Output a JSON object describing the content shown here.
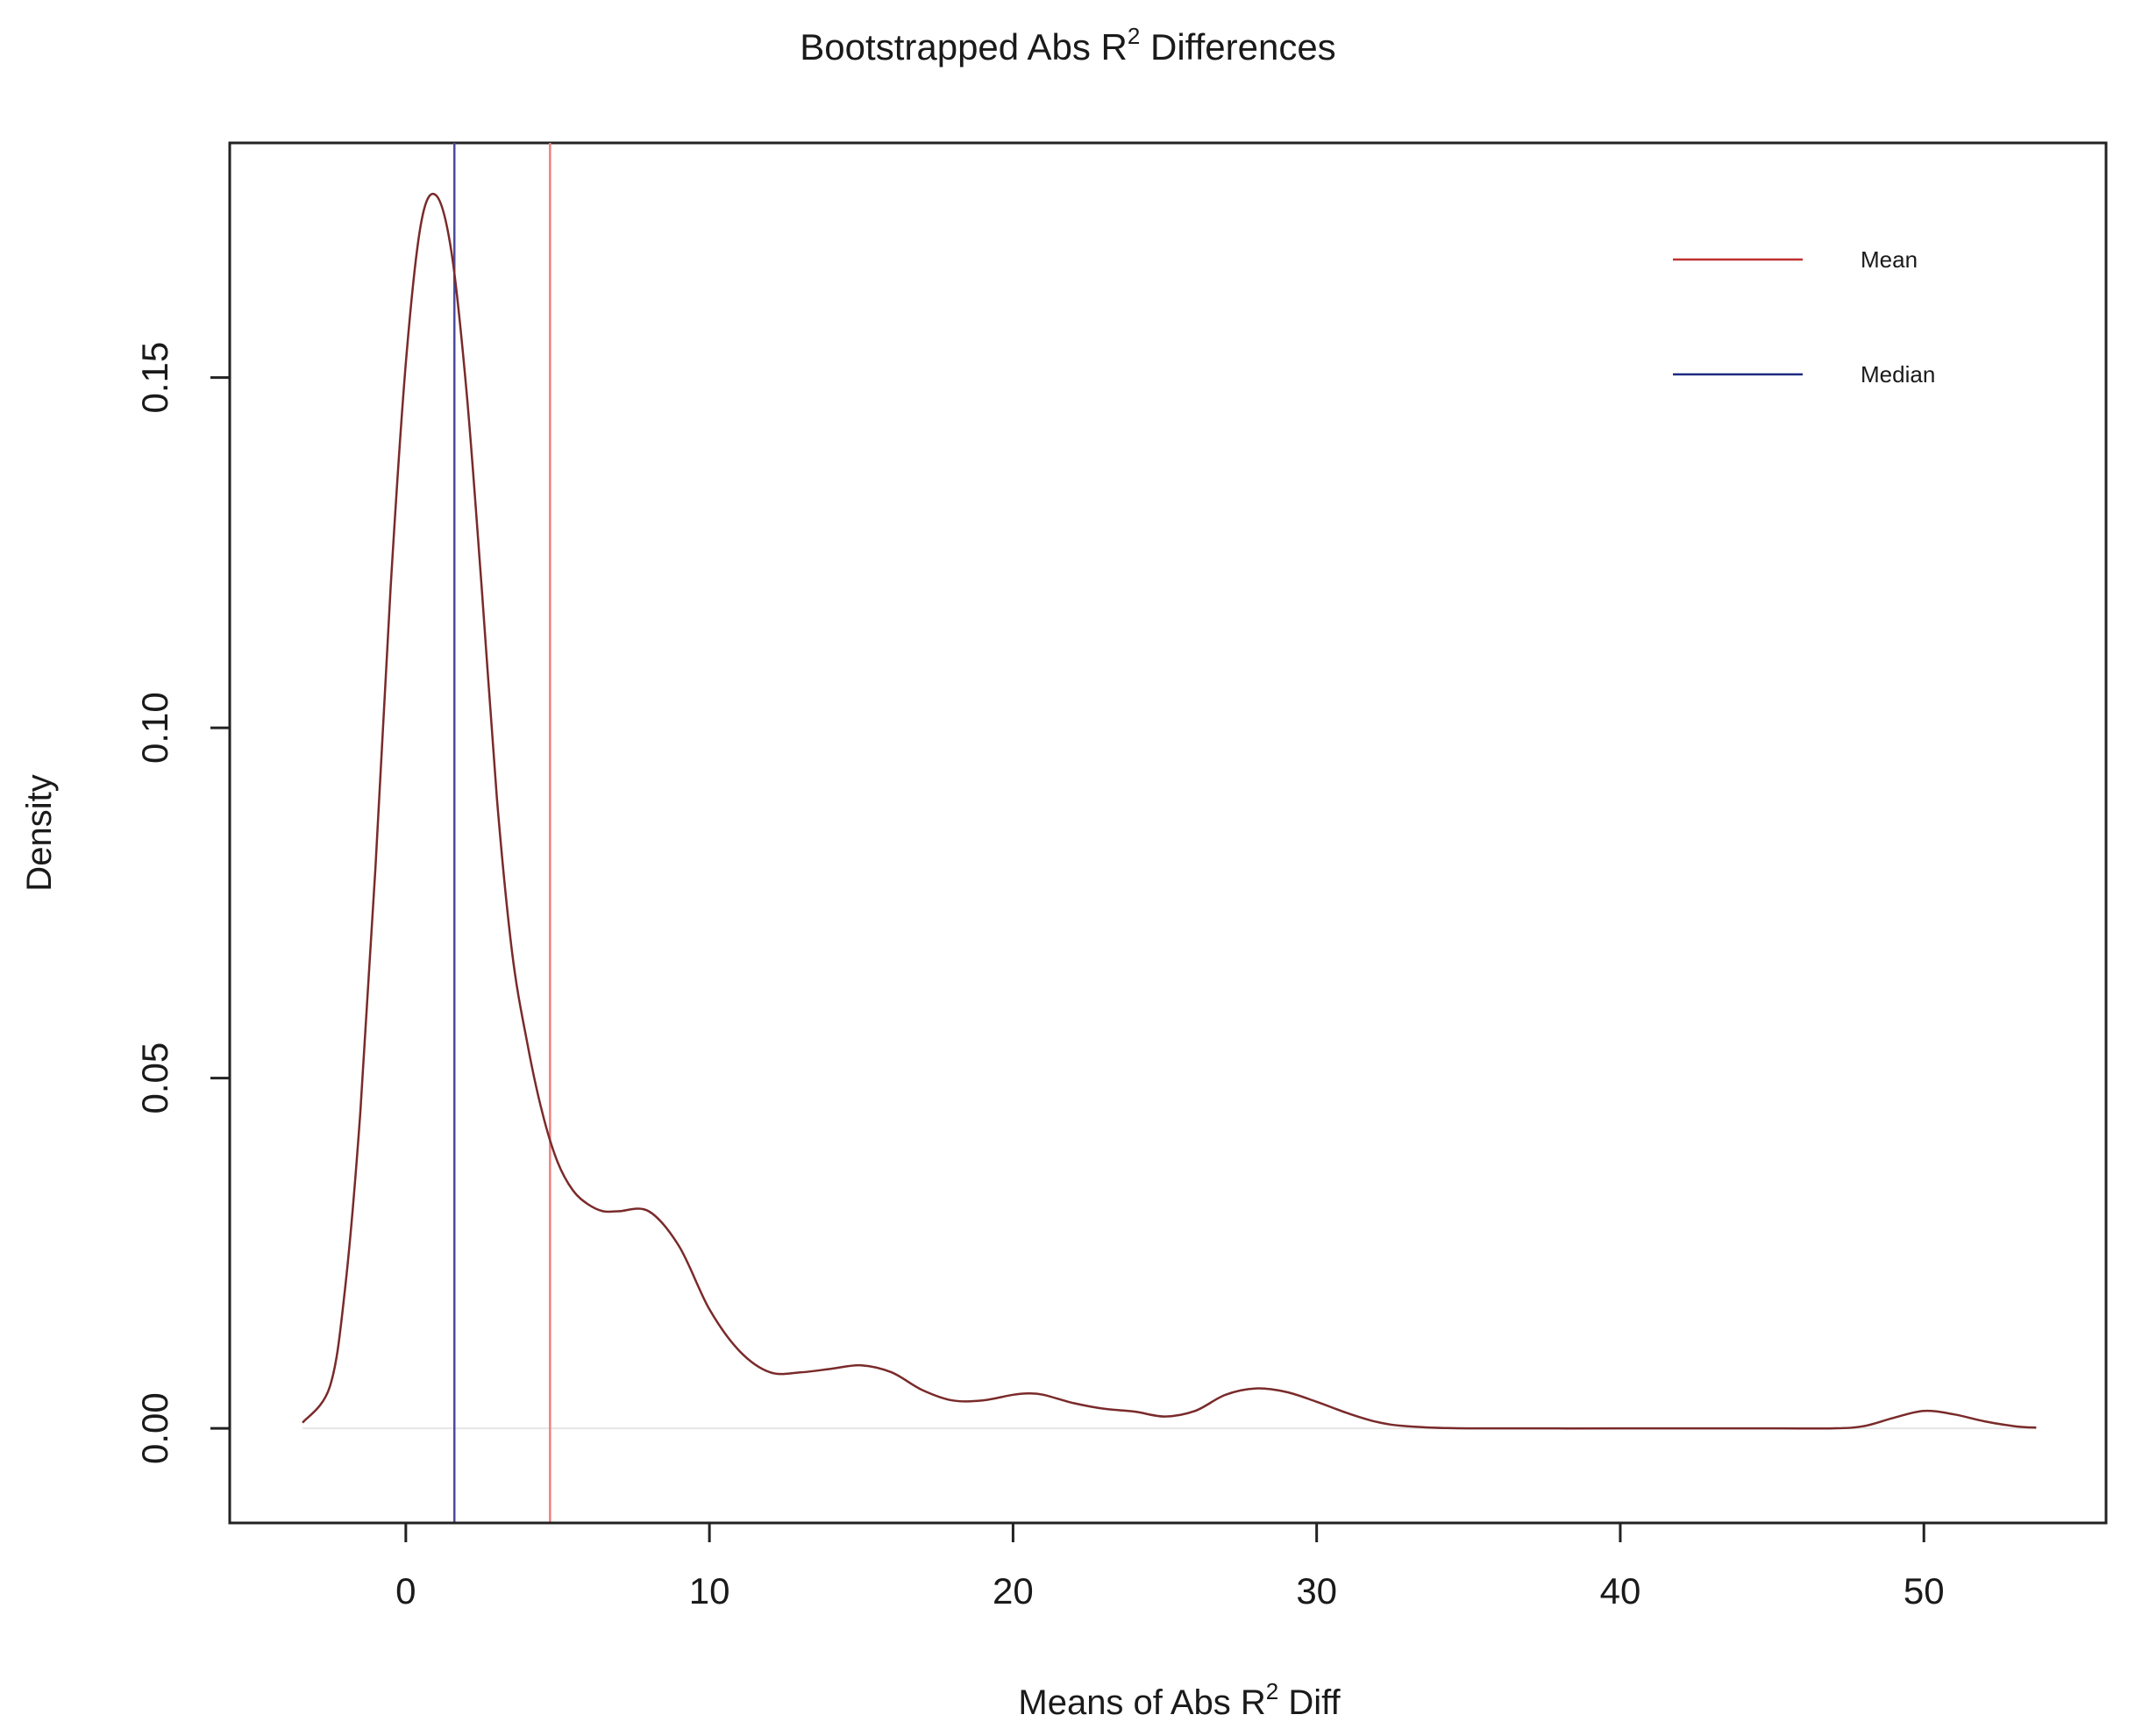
{
  "chart_data": {
    "type": "line",
    "title": {
      "before": "Bootstrapped Abs R",
      "sup": "2",
      "after": " Differences"
    },
    "xlabel": {
      "before": "Means of Abs R",
      "sup": "2",
      "after": " Diff"
    },
    "ylabel": "Density",
    "xlim": [
      -5.8,
      56
    ],
    "ylim": [
      -0.0135,
      0.1835
    ],
    "x_ticks": [
      0,
      10,
      20,
      30,
      40,
      50
    ],
    "x_tick_labels": [
      "0",
      "10",
      "20",
      "30",
      "40",
      "50"
    ],
    "y_ticks": [
      0,
      0.05,
      0.1,
      0.15
    ],
    "y_tick_labels": [
      "0.00",
      "0.05",
      "0.10",
      "0.15"
    ],
    "grid": false,
    "legend_position": "top-right",
    "series": [
      {
        "name": "",
        "color": "#7a2a2a",
        "x": [
          -3.4,
          -2.5,
          -2.0,
          -1.5,
          -1.0,
          -0.5,
          0.0,
          0.5,
          1.0,
          1.5,
          2.0,
          2.5,
          3.0,
          3.5,
          4.0,
          4.5,
          5.0,
          5.5,
          6.0,
          6.5,
          7.0,
          8.0,
          9.0,
          10.0,
          11.0,
          12.0,
          13.0,
          14.0,
          15.0,
          16.0,
          17.0,
          18.0,
          19.0,
          20.0,
          20.5,
          21.0,
          22.0,
          23.0,
          24.0,
          25.0,
          26.0,
          27.0,
          28.0,
          29.0,
          30.0,
          31.0,
          32.0,
          33.0,
          35.0,
          40.0,
          45.0,
          47.0,
          48.0,
          49.0,
          50.0,
          51.0,
          52.0,
          53.0,
          53.7
        ],
        "y": [
          0.0008,
          0.006,
          0.02,
          0.045,
          0.08,
          0.12,
          0.152,
          0.172,
          0.176,
          0.168,
          0.148,
          0.12,
          0.09,
          0.068,
          0.055,
          0.045,
          0.038,
          0.034,
          0.032,
          0.031,
          0.031,
          0.031,
          0.026,
          0.017,
          0.011,
          0.008,
          0.008,
          0.0085,
          0.009,
          0.008,
          0.0055,
          0.004,
          0.004,
          0.0048,
          0.005,
          0.0048,
          0.0036,
          0.0028,
          0.0024,
          0.0017,
          0.0025,
          0.0048,
          0.0057,
          0.0052,
          0.0038,
          0.0022,
          0.0009,
          0.0003,
          0.0,
          0.0,
          0.0,
          0.0,
          0.0003,
          0.0015,
          0.0025,
          0.002,
          0.001,
          0.0003,
          0.0001
        ]
      }
    ],
    "vlines": [
      {
        "name": "Mean",
        "x": 4.75,
        "color": "#f08080"
      },
      {
        "name": "Median",
        "x": 1.6,
        "color": "#4b4ba0"
      }
    ],
    "legend": [
      {
        "label": "Mean",
        "color": "#c03030"
      },
      {
        "label": "Median",
        "color": "#1e2a80"
      }
    ]
  }
}
